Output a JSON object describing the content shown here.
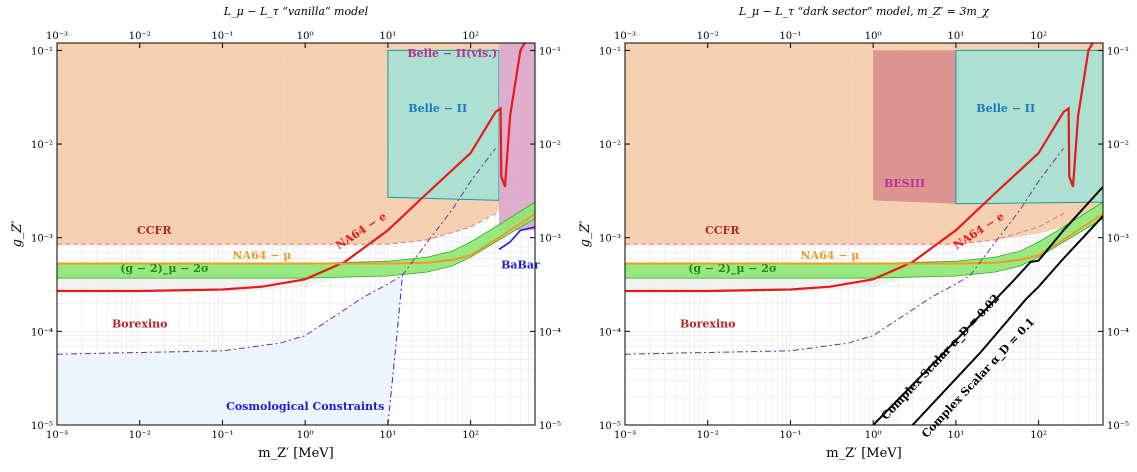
{
  "chart_data": [
    {
      "type": "area",
      "title": "L_μ − L_τ  “vanilla”  model",
      "xlabel": "m_Z′ [MeV]",
      "ylabel": "g_Z′",
      "xscale": "log",
      "yscale": "log",
      "xlim": [
        0.001,
        600
      ],
      "ylim": [
        1e-05,
        0.12
      ],
      "xticks": [
        "10⁻³",
        "10⁻²",
        "10⁻¹",
        "10⁰",
        "10¹",
        "10²"
      ],
      "yticks": [
        "10⁻⁵",
        "10⁻⁴",
        "10⁻³",
        "10⁻²",
        "10⁻¹"
      ],
      "colors": {
        "ccfr": "#f3c8a3",
        "belle": "#9fe3d6",
        "babar": "#d9a0c4",
        "g2": "#7ee86f",
        "cosmo": "#eaf5fd",
        "borexino": "#efefef",
        "na64e": "#e8191b",
        "na64mu": "#f39a27",
        "cosmo_line": "#2a2ad1"
      },
      "regions": [
        {
          "name": "CCFR",
          "label": "CCFR",
          "points": [
            [
              0.001,
              0.12
            ],
            [
              220,
              0.12
            ],
            [
              220,
              0.00195
            ],
            [
              100,
              0.0013
            ],
            [
              30,
              0.00095
            ],
            [
              10,
              0.00085
            ],
            [
              0.001,
              0.00085
            ]
          ]
        },
        {
          "name": "Belle − II",
          "label": "Belle − II",
          "points": [
            [
              10,
              0.1
            ],
            [
              220,
              0.1
            ],
            [
              220,
              0.0025
            ],
            [
              10,
              0.0027
            ]
          ]
        },
        {
          "name": "Belle − II(vis.)",
          "label": "Belle − II(vis.)",
          "points": [
            [
              220,
              0.12
            ],
            [
              600,
              0.12
            ],
            [
              600,
              0.0012
            ],
            [
              220,
              0.0012
            ]
          ]
        },
        {
          "name": "Borexino",
          "label": "Borexino",
          "points": [
            [
              0.001,
              0.00027
            ],
            [
              0.2,
              0.00027
            ],
            [
              1,
              0.0003
            ],
            [
              10,
              0.0005
            ],
            [
              0.001,
              0.0005
            ]
          ]
        },
        {
          "name": "Cosmological Constraints",
          "label": "Cosmological Constraints",
          "points": [
            [
              0.001,
              5.7e-05
            ],
            [
              0.1,
              6.2e-05
            ],
            [
              0.5,
              7.5e-05
            ],
            [
              1,
              9e-05
            ],
            [
              5,
              0.00023
            ],
            [
              10,
              0.00032
            ],
            [
              15,
              0.0004
            ],
            [
              10,
              1e-05
            ],
            [
              0.001,
              1e-05
            ]
          ]
        }
      ],
      "bands": [
        {
          "name": "(g − 2)μ − 2σ",
          "label": "(g − 2)_μ − 2σ",
          "lower": [
            [
              0.001,
              0.00037
            ],
            [
              1,
              0.00037
            ],
            [
              10,
              0.00039
            ],
            [
              30,
              0.00043
            ],
            [
              60,
              0.0005
            ],
            [
              100,
              0.00062
            ],
            [
              200,
              0.0009
            ],
            [
              600,
              0.0016
            ]
          ],
          "upper": [
            [
              0.001,
              0.00053
            ],
            [
              1,
              0.00053
            ],
            [
              10,
              0.00056
            ],
            [
              30,
              0.00062
            ],
            [
              60,
              0.00072
            ],
            [
              100,
              0.0009
            ],
            [
              200,
              0.0013
            ],
            [
              600,
              0.0024
            ]
          ]
        }
      ],
      "series": [
        {
          "name": "NA64 − e",
          "label": "NA64 − e",
          "points": [
            [
              0.001,
              0.00027
            ],
            [
              0.01,
              0.00027
            ],
            [
              0.1,
              0.00028
            ],
            [
              0.3,
              0.0003
            ],
            [
              1,
              0.00036
            ],
            [
              3,
              0.00055
            ],
            [
              10,
              0.0012
            ],
            [
              30,
              0.003
            ],
            [
              100,
              0.008
            ],
            [
              200,
              0.022
            ],
            [
              230,
              0.024
            ],
            [
              235,
              0.0045
            ],
            [
              260,
              0.0035
            ],
            [
              300,
              0.02
            ],
            [
              400,
              0.1
            ],
            [
              450,
              0.12
            ]
          ]
        },
        {
          "name": "NA64 − μ",
          "label": "NA64 − μ",
          "points": [
            [
              0.001,
              0.00053
            ],
            [
              1,
              0.00053
            ],
            [
              10,
              0.00053
            ],
            [
              30,
              0.00054
            ],
            [
              60,
              0.00058
            ],
            [
              100,
              0.00065
            ],
            [
              200,
              0.00095
            ],
            [
              600,
              0.0018
            ]
          ]
        },
        {
          "name": "CCFR",
          "points": [
            [
              0.001,
              0.00085
            ],
            [
              10,
              0.00085
            ],
            [
              30,
              0.00095
            ],
            [
              100,
              0.0013
            ],
            [
              220,
              0.0019
            ]
          ]
        },
        {
          "name": "Borexino",
          "points": [
            [
              0.001,
              5.7e-05
            ],
            [
              0.1,
              6.2e-05
            ],
            [
              0.5,
              7.5e-05
            ],
            [
              1,
              9e-05
            ],
            [
              5,
              0.00023
            ],
            [
              10,
              0.00032
            ],
            [
              15,
              0.0004
            ],
            [
              30,
              0.0009
            ],
            [
              60,
              0.002
            ],
            [
              100,
              0.004
            ],
            [
              200,
              0.009
            ]
          ]
        },
        {
          "name": "Cosmological Constraints",
          "points": [
            [
              10,
              1e-05
            ],
            [
              13,
              0.0001
            ],
            [
              15,
              0.0004
            ]
          ]
        },
        {
          "name": "BaBar",
          "label": "BaBar",
          "points": [
            [
              220,
              0.00075
            ],
            [
              300,
              0.0009
            ],
            [
              400,
              0.0012
            ],
            [
              600,
              0.0013
            ]
          ]
        }
      ]
    },
    {
      "type": "area",
      "title": "L_μ − L_τ  “dark sector”  model,  m_Z′ = 3m_χ",
      "xlabel": "m_Z′ [MeV]",
      "ylabel": "g_Z′",
      "xscale": "log",
      "yscale": "log",
      "xlim": [
        0.001,
        600
      ],
      "ylim": [
        1e-05,
        0.12
      ],
      "xticks": [
        "10⁻³",
        "10⁻²",
        "10⁻¹",
        "10⁰",
        "10¹",
        "10²"
      ],
      "yticks": [
        "10⁻⁵",
        "10⁻⁴",
        "10⁻³",
        "10⁻²",
        "10⁻¹"
      ],
      "regions": [
        {
          "name": "CCFR",
          "label": "CCFR",
          "points": [
            [
              0.001,
              0.12
            ],
            [
              600,
              0.12
            ],
            [
              600,
              0.0024
            ],
            [
              200,
              0.0013
            ],
            [
              100,
              0.0011
            ],
            [
              30,
              0.00095
            ],
            [
              10,
              0.00085
            ],
            [
              0.001,
              0.00085
            ]
          ]
        },
        {
          "name": "BESIII",
          "label": "BESIII",
          "points": [
            [
              1,
              0.1
            ],
            [
              10,
              0.1
            ],
            [
              10,
              0.0023
            ],
            [
              1,
              0.0025
            ]
          ]
        },
        {
          "name": "Belle − II",
          "label": "Belle − II",
          "points": [
            [
              10,
              0.1
            ],
            [
              600,
              0.1
            ],
            [
              600,
              0.0024
            ],
            [
              10,
              0.0023
            ]
          ]
        },
        {
          "name": "Borexino",
          "label": "Borexino",
          "points": [
            [
              0.001,
              0.00027
            ],
            [
              0.2,
              0.00027
            ],
            [
              1,
              0.0003
            ],
            [
              10,
              0.0005
            ],
            [
              0.001,
              0.0005
            ]
          ]
        }
      ],
      "bands": [
        {
          "name": "(g − 2)μ − 2σ",
          "label": "(g − 2)_μ − 2σ",
          "lower": [
            [
              0.001,
              0.00037
            ],
            [
              1,
              0.00037
            ],
            [
              10,
              0.00039
            ],
            [
              30,
              0.00043
            ],
            [
              60,
              0.0005
            ],
            [
              100,
              0.00062
            ],
            [
              200,
              0.0009
            ],
            [
              600,
              0.0016
            ]
          ],
          "upper": [
            [
              0.001,
              0.00053
            ],
            [
              1,
              0.00053
            ],
            [
              10,
              0.00056
            ],
            [
              30,
              0.00062
            ],
            [
              60,
              0.00072
            ],
            [
              100,
              0.0009
            ],
            [
              200,
              0.0013
            ],
            [
              600,
              0.0024
            ]
          ]
        }
      ],
      "series": [
        {
          "name": "NA64 − e",
          "label": "NA64 − e",
          "points": [
            [
              0.001,
              0.00027
            ],
            [
              0.01,
              0.00027
            ],
            [
              0.1,
              0.00028
            ],
            [
              0.3,
              0.0003
            ],
            [
              1,
              0.00036
            ],
            [
              3,
              0.00055
            ],
            [
              10,
              0.0012
            ],
            [
              30,
              0.003
            ],
            [
              100,
              0.008
            ],
            [
              200,
              0.022
            ],
            [
              230,
              0.024
            ],
            [
              235,
              0.0045
            ],
            [
              260,
              0.0035
            ],
            [
              300,
              0.02
            ],
            [
              400,
              0.1
            ],
            [
              450,
              0.12
            ]
          ]
        },
        {
          "name": "NA64 − μ",
          "label": "NA64 − μ",
          "points": [
            [
              0.001,
              0.00053
            ],
            [
              1,
              0.00053
            ],
            [
              10,
              0.00053
            ],
            [
              30,
              0.00054
            ],
            [
              60,
              0.00058
            ],
            [
              100,
              0.00065
            ],
            [
              200,
              0.00095
            ],
            [
              600,
              0.0018
            ]
          ]
        },
        {
          "name": "CCFR",
          "points": [
            [
              0.001,
              0.00085
            ],
            [
              10,
              0.00085
            ],
            [
              30,
              0.00095
            ],
            [
              100,
              0.0013
            ],
            [
              220,
              0.0019
            ]
          ]
        },
        {
          "name": "Borexino",
          "points": [
            [
              0.001,
              5.7e-05
            ],
            [
              0.1,
              6.2e-05
            ],
            [
              0.5,
              7.5e-05
            ],
            [
              1,
              9e-05
            ],
            [
              5,
              0.00023
            ],
            [
              10,
              0.00032
            ],
            [
              15,
              0.0004
            ],
            [
              30,
              0.0009
            ],
            [
              60,
              0.002
            ],
            [
              100,
              0.004
            ],
            [
              200,
              0.009
            ]
          ]
        },
        {
          "name": "Complex Scalar α_D = 0.02",
          "label": "Complex Scalar α_D = 0.02",
          "points": [
            [
              1,
              1e-05
            ],
            [
              10,
              8e-05
            ],
            [
              50,
              0.00035
            ],
            [
              80,
              0.00055
            ],
            [
              100,
              0.00057
            ],
            [
              200,
              0.0012
            ],
            [
              600,
              0.0035
            ]
          ]
        },
        {
          "name": "Complex Scalar α_D = 0.1",
          "label": "Complex Scalar α_D = 0.1",
          "points": [
            [
              3,
              1e-05
            ],
            [
              20,
              6e-05
            ],
            [
              70,
              0.00022
            ],
            [
              100,
              0.0003
            ],
            [
              200,
              0.0006
            ],
            [
              600,
              0.0017
            ]
          ]
        }
      ]
    }
  ]
}
